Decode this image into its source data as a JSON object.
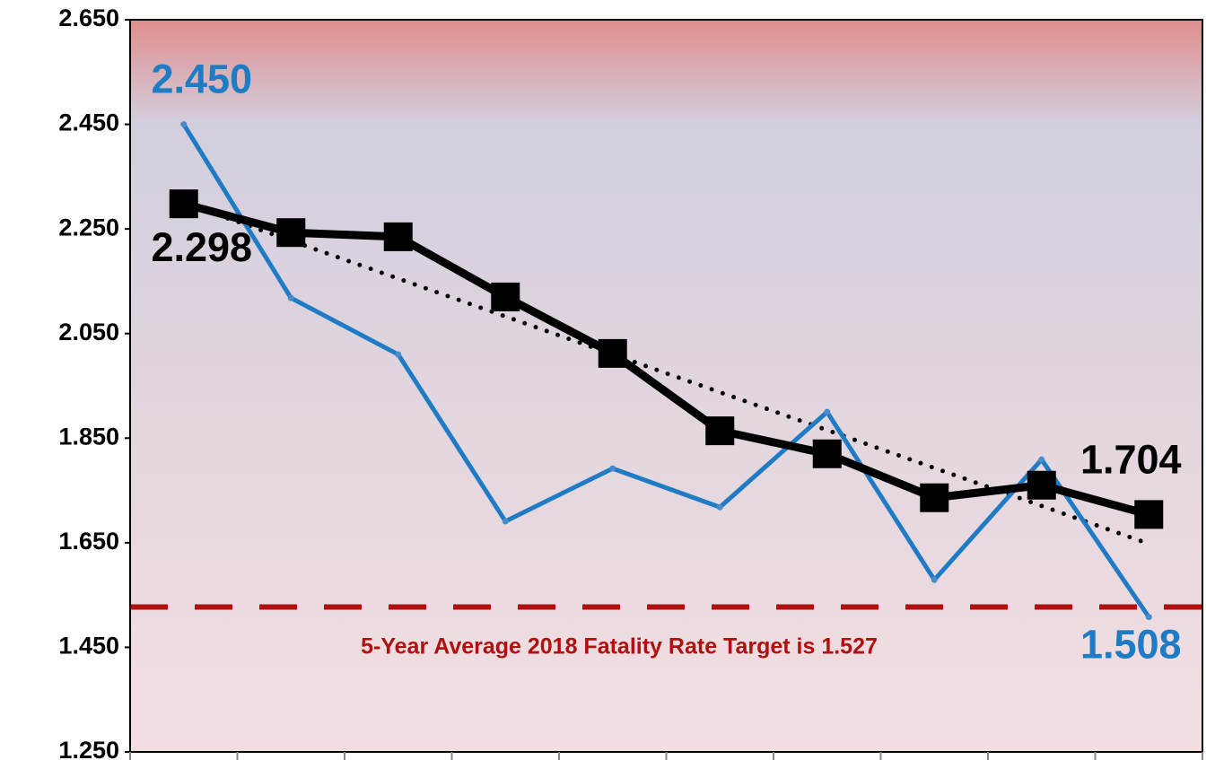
{
  "chart_data": {
    "type": "line",
    "categories": [
      null,
      null,
      null,
      null,
      null,
      null,
      null,
      null,
      null,
      null
    ],
    "series": [
      {
        "color": "#1f7bc4",
        "values": [
          2.45,
          2.118,
          2.01,
          1.691,
          1.792,
          1.718,
          1.9,
          1.579,
          1.809,
          1.508
        ],
        "value_labels": [
          "2.450",
          null,
          null,
          null,
          null,
          null,
          null,
          null,
          null,
          "1.508"
        ]
      },
      {
        "color": "#000000",
        "values": [
          2.298,
          2.243,
          2.235,
          2.12,
          2.012,
          1.864,
          1.82,
          1.736,
          1.76,
          1.704
        ],
        "value_labels": [
          "2.298",
          null,
          null,
          null,
          null,
          null,
          null,
          null,
          null,
          "1.704"
        ]
      }
    ],
    "trendline": {
      "color": "#000000",
      "values": [
        2.3,
        1.648
      ]
    },
    "target": {
      "value": 1.527,
      "color": "#b01010"
    },
    "annotation": "5-Year Average 2018 Fatality Rate Target is 1.527",
    "ylim": [
      1.25,
      2.65
    ],
    "yticks": [
      {
        "value": 1.25,
        "label": "1.250"
      },
      {
        "value": 1.45,
        "label": "1.450"
      },
      {
        "value": 1.65,
        "label": "1.650"
      },
      {
        "value": 1.85,
        "label": "1.850"
      },
      {
        "value": 2.05,
        "label": "2.050"
      },
      {
        "value": 2.25,
        "label": "2.250"
      },
      {
        "value": 2.45,
        "label": "2.450"
      },
      {
        "value": 2.65,
        "label": "2.650"
      }
    ]
  }
}
